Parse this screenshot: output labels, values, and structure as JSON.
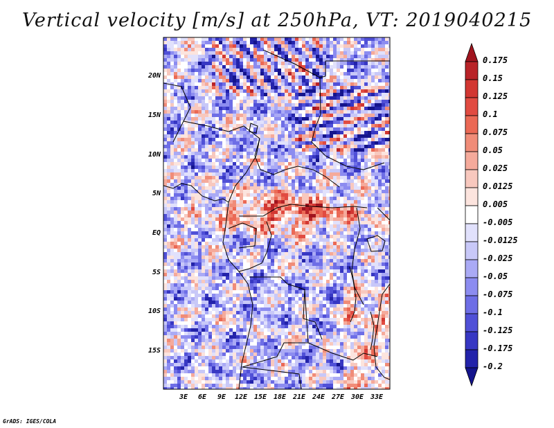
{
  "title": "Vertical velocity [m/s] at 250hPa, VT: 2019040215",
  "credit": "GrADS: IGES/COLA",
  "y_axis_labels": [
    "20N",
    "15N",
    "10N",
    "5N",
    "EQ",
    "5S",
    "10S",
    "15S"
  ],
  "x_axis_labels": [
    "3E",
    "6E",
    "9E",
    "12E",
    "15E",
    "18E",
    "21E",
    "24E",
    "27E",
    "30E",
    "33E"
  ],
  "colorbar": {
    "labels": [
      "0.175",
      "0.15",
      "0.125",
      "0.1",
      "0.075",
      "0.05",
      "0.025",
      "0.0125",
      "0.005",
      "-0.005",
      "-0.0125",
      "-0.025",
      "-0.05",
      "-0.075",
      "-0.1",
      "-0.125",
      "-0.175",
      "-0.2"
    ],
    "colors": [
      "#a0141e",
      "#b92328",
      "#d23732",
      "#e14b41",
      "#eb6955",
      "#f08c78",
      "#f5aa9b",
      "#f8c8be",
      "#fce4de",
      "#ffffff",
      "#e1e1fc",
      "#c8c8f8",
      "#aaaaf5",
      "#8c8cf0",
      "#6e6ee6",
      "#5050d7",
      "#3737c3",
      "#2323aa",
      "#14148c"
    ]
  }
}
